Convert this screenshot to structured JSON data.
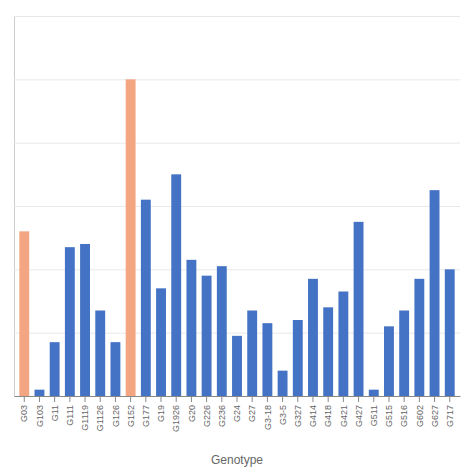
{
  "chart_data": {
    "type": "bar",
    "xlabel": "Genotype",
    "categories": [
      "G03",
      "G103",
      "G11",
      "G111",
      "G1119",
      "G1126",
      "G126",
      "G152",
      "G177",
      "G19",
      "G1926",
      "G20",
      "G226",
      "G236",
      "G24",
      "G27",
      "G3-18",
      "G3-5",
      "G327",
      "G414",
      "G418",
      "G421",
      "G427",
      "G511",
      "G515",
      "G516",
      "G602",
      "G627",
      "G717"
    ],
    "values": [
      52,
      2,
      17,
      47,
      48,
      27,
      17,
      100,
      62,
      34,
      70,
      43,
      38,
      41,
      19,
      27,
      23,
      8,
      24,
      37,
      28,
      33,
      55,
      2,
      22,
      27,
      37,
      65,
      40
    ],
    "colors": [
      "#f4a582",
      "#4472c4",
      "#4472c4",
      "#4472c4",
      "#4472c4",
      "#4472c4",
      "#4472c4",
      "#f4a582",
      "#4472c4",
      "#4472c4",
      "#4472c4",
      "#4472c4",
      "#4472c4",
      "#4472c4",
      "#4472c4",
      "#4472c4",
      "#4472c4",
      "#4472c4",
      "#4472c4",
      "#4472c4",
      "#4472c4",
      "#4472c4",
      "#4472c4",
      "#4472c4",
      "#4472c4",
      "#4472c4",
      "#4472c4",
      "#4472c4",
      "#4472c4"
    ],
    "ylim": [
      0,
      120
    ],
    "yticks": [
      0,
      20,
      40,
      60,
      80,
      100,
      120
    ],
    "grid": true,
    "tick_labels": "x"
  }
}
